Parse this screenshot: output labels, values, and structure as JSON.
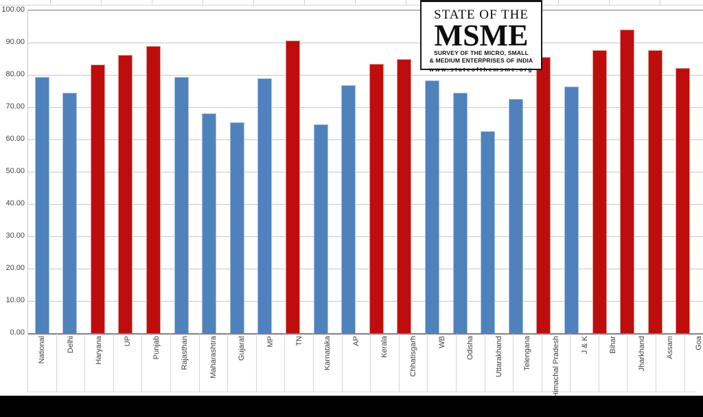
{
  "chart_data": {
    "type": "bar",
    "title": "",
    "xlabel": "",
    "ylabel": "",
    "ylim": [
      0,
      100
    ],
    "ytick_labels": [
      "100.00",
      "90.00",
      "80.00",
      "70.00",
      "60.00",
      "50.00",
      "40.00",
      "30.00",
      "20.00",
      "10.00",
      "0.00"
    ],
    "grid": "horizontal",
    "legend": "none",
    "categories": [
      "National",
      "Delhi",
      "Haryana",
      "UP",
      "Punjab",
      "Rajasthan",
      "Maharashtra",
      "Gujarat",
      "MP",
      "TN",
      "Karnataka",
      "AP",
      "Kerala",
      "Chhatisgarh",
      "WB",
      "Odisha",
      "Uttarakhand",
      "Telengana",
      "Himachal Pradesh",
      "J & K",
      "Bihar",
      "Jharkhand",
      "Assam",
      "Goa"
    ],
    "values": [
      79.4,
      74.4,
      83.2,
      86.1,
      88.9,
      79.3,
      68.1,
      65.3,
      78.9,
      90.7,
      64.7,
      76.9,
      83.5,
      84.9,
      78.2,
      74.5,
      62.6,
      72.5,
      85.6,
      76.4,
      87.7,
      94.0,
      87.6,
      82.2
    ],
    "bar_color_keys": [
      "blue",
      "blue",
      "red",
      "red",
      "red",
      "blue",
      "blue",
      "blue",
      "blue",
      "red",
      "blue",
      "blue",
      "red",
      "red",
      "blue",
      "blue",
      "blue",
      "blue",
      "red",
      "blue",
      "red",
      "red",
      "red",
      "red"
    ],
    "colors": {
      "blue": "#4f81bd",
      "red": "#bf0d0d",
      "gridline": "#c6c6c6",
      "axis": "#808080"
    }
  },
  "logo": {
    "line1": "STATE OF THE",
    "line2": "MSME",
    "line3": "SURVEY OF THE MICRO, SMALL",
    "line4": "& MEDIUM ENTERPRISES OF INDIA",
    "line5": "www.stateofthemsme.org"
  }
}
